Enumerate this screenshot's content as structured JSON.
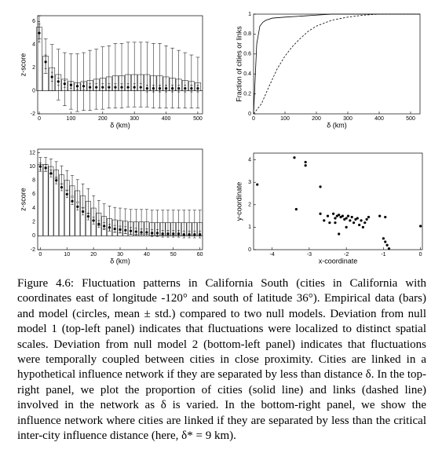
{
  "chart_data": [
    {
      "type": "bar",
      "caption_label": "Figure 4.6:",
      "caption": "Fluctuation patterns in California South (cities in California with coordinates east of longitude -120° and south of latitude 36°). Empirical data (bars) and model (circles, mean ± std.) compared to two null models. Deviation from null model 1 (top-left panel) indicates that fluctuations were localized to distinct spatial scales. Deviation from null model 2 (bottom-left panel) indicates that fluctuations were temporally coupled between cities in close proximity. Cities are linked in a hypothetical influence network if they are separated by less than distance δ. In the top-right panel, we plot the proportion of cities (solid line) and links (dashed line) involved in the network as δ is varied. In the bottom-right panel, we show the influence network where cities are linked if they are separated by less than the critical inter-city influence distance (here, δ* = 9 km).",
      "xlabel": "δ (km)",
      "ylabel": "z-score",
      "xlim": [
        -5,
        515
      ],
      "ylim": [
        -2,
        6.5
      ],
      "xticks": [
        0,
        100,
        200,
        300,
        400,
        500
      ],
      "yticks": [
        -2,
        0,
        2,
        4,
        6
      ],
      "x": [
        0,
        20,
        40,
        60,
        80,
        100,
        120,
        140,
        160,
        180,
        200,
        220,
        240,
        260,
        280,
        300,
        320,
        340,
        360,
        380,
        400,
        420,
        440,
        460,
        480,
        500
      ],
      "series": [
        {
          "kind": "bar",
          "color": "#ffffff",
          "values": [
            5.5,
            3.0,
            2.0,
            1.4,
            1.0,
            0.8,
            0.7,
            0.8,
            0.9,
            1.0,
            1.1,
            1.2,
            1.3,
            1.3,
            1.4,
            1.4,
            1.4,
            1.4,
            1.3,
            1.3,
            1.2,
            1.1,
            1.0,
            0.9,
            0.8,
            0.7
          ],
          "errors": [
            1.0,
            1.5,
            2.0,
            2.2,
            2.3,
            2.4,
            2.5,
            2.5,
            2.6,
            2.6,
            2.7,
            2.7,
            2.8,
            2.8,
            2.8,
            2.8,
            2.8,
            2.8,
            2.8,
            2.8,
            2.7,
            2.6,
            2.5,
            2.4,
            2.3,
            2.2
          ]
        },
        {
          "kind": "point",
          "color": "#000000",
          "values": [
            5.0,
            2.5,
            1.2,
            0.8,
            0.6,
            0.5,
            0.4,
            0.4,
            0.3,
            0.3,
            0.3,
            0.3,
            0.3,
            0.3,
            0.3,
            0.3,
            0.3,
            0.2,
            0.2,
            0.2,
            0.2,
            0.2,
            0.2,
            0.2,
            0.2,
            0.2
          ],
          "errors": [
            0.8,
            0.6,
            0.4,
            0.3,
            0.3,
            0.3,
            0.3,
            0.3,
            0.3,
            0.3,
            0.3,
            0.3,
            0.3,
            0.3,
            0.3,
            0.3,
            0.3,
            0.3,
            0.3,
            0.3,
            0.3,
            0.3,
            0.3,
            0.3,
            0.3,
            0.3
          ]
        }
      ]
    },
    {
      "type": "line",
      "xlabel": "δ (km)",
      "ylabel": "Fraction of cities or links",
      "xlim": [
        0,
        530
      ],
      "ylim": [
        0,
        1
      ],
      "xticks": [
        0,
        100,
        200,
        300,
        400,
        500
      ],
      "yticks": [
        0,
        0.2,
        0.4,
        0.6,
        0.8,
        1
      ],
      "series": [
        {
          "dash": false,
          "color": "#000000",
          "x": [
            0,
            10,
            20,
            30,
            40,
            60,
            100,
            150,
            200,
            250,
            530
          ],
          "values": [
            0,
            0.7,
            0.88,
            0.92,
            0.94,
            0.96,
            0.97,
            0.98,
            0.99,
            1,
            1
          ]
        },
        {
          "dash": true,
          "color": "#000000",
          "x": [
            0,
            25,
            50,
            75,
            100,
            125,
            150,
            175,
            200,
            250,
            300,
            350,
            400,
            530
          ],
          "values": [
            0,
            0.1,
            0.28,
            0.45,
            0.58,
            0.68,
            0.76,
            0.83,
            0.88,
            0.94,
            0.97,
            0.99,
            1,
            1
          ]
        }
      ]
    },
    {
      "type": "bar",
      "xlabel": "δ (km)",
      "ylabel": "z-score",
      "xlim": [
        -1,
        61
      ],
      "ylim": [
        -2,
        12.5
      ],
      "xticks": [
        0,
        10,
        20,
        30,
        40,
        50,
        60
      ],
      "yticks": [
        -2,
        0,
        2,
        4,
        6,
        8,
        10,
        12
      ],
      "x": [
        0,
        2,
        4,
        6,
        8,
        10,
        12,
        14,
        16,
        18,
        20,
        22,
        24,
        26,
        28,
        30,
        32,
        34,
        36,
        38,
        40,
        42,
        44,
        46,
        48,
        50,
        52,
        54,
        56,
        58,
        60
      ],
      "series": [
        {
          "kind": "bar",
          "color": "#ffffff",
          "values": [
            10.3,
            10.3,
            10.0,
            9.5,
            8.8,
            8.0,
            7.2,
            6.5,
            5.8,
            5.0,
            4.0,
            3.3,
            2.8,
            2.5,
            2.3,
            2.2,
            2.1,
            2.0,
            2.0,
            2.0,
            2.0,
            1.9,
            1.9,
            1.9,
            1.9,
            1.9,
            1.9,
            1.9,
            1.9,
            1.9,
            1.9
          ],
          "errors": [
            1.0,
            1.0,
            1.1,
            1.2,
            1.3,
            1.4,
            1.5,
            1.6,
            1.7,
            1.8,
            1.8,
            1.8,
            1.8,
            1.8,
            1.8,
            1.8,
            1.8,
            1.8,
            1.8,
            1.8,
            1.8,
            1.8,
            1.8,
            1.8,
            1.8,
            1.8,
            1.8,
            1.8,
            1.8,
            1.8,
            1.8
          ]
        },
        {
          "kind": "point",
          "color": "#000000",
          "values": [
            10.0,
            9.8,
            9.0,
            8.0,
            7.0,
            6.0,
            5.0,
            4.2,
            3.5,
            2.8,
            2.2,
            1.7,
            1.4,
            1.2,
            1.0,
            0.9,
            0.8,
            0.7,
            0.6,
            0.5,
            0.5,
            0.4,
            0.4,
            0.3,
            0.3,
            0.3,
            0.3,
            0.2,
            0.2,
            0.2,
            0.2
          ],
          "errors": [
            0.5,
            0.5,
            0.5,
            0.5,
            0.5,
            0.5,
            0.5,
            0.5,
            0.5,
            0.5,
            0.5,
            0.5,
            0.5,
            0.5,
            0.5,
            0.5,
            0.5,
            0.5,
            0.5,
            0.5,
            0.5,
            0.5,
            0.5,
            0.5,
            0.5,
            0.5,
            0.5,
            0.5,
            0.5,
            0.5,
            0.5
          ]
        }
      ]
    },
    {
      "type": "scatter",
      "xlabel": "x-coordinate",
      "ylabel": "y-coordinate",
      "xlim": [
        -4.5,
        0.05
      ],
      "ylim": [
        0,
        4.3
      ],
      "xticks": [
        -4,
        -3,
        -2,
        -1,
        0
      ],
      "yticks": [
        0,
        1,
        2,
        3,
        4
      ],
      "color": "#000000",
      "x": [
        -4.4,
        -3.4,
        -3.1,
        -3.1,
        -3.35,
        -2.7,
        -2.7,
        -2.5,
        -2.35,
        -2.3,
        -2.25,
        -2.2,
        -2.15,
        -2.1,
        -2.05,
        -2.0,
        -1.95,
        -1.9,
        -1.85,
        -1.8,
        -1.75,
        -1.7,
        -1.65,
        -1.6,
        -1.55,
        -1.5,
        -1.45,
        -1.4,
        -2.45,
        -2.2,
        -2.0,
        -1.1,
        -0.95,
        -1.0,
        -0.95,
        -0.9,
        -0.85,
        0.0,
        -2.6,
        -2.3
      ],
      "values": [
        2.9,
        4.1,
        3.9,
        3.75,
        1.8,
        2.8,
        1.6,
        1.5,
        1.6,
        1.4,
        1.5,
        1.55,
        1.45,
        1.5,
        1.35,
        1.4,
        1.5,
        1.3,
        1.45,
        1.2,
        1.35,
        1.4,
        1.1,
        1.3,
        1.0,
        1.2,
        1.35,
        1.45,
        1.2,
        0.7,
        1.0,
        1.5,
        1.45,
        0.5,
        0.35,
        0.2,
        0.05,
        1.05,
        1.3,
        1.2
      ]
    }
  ]
}
